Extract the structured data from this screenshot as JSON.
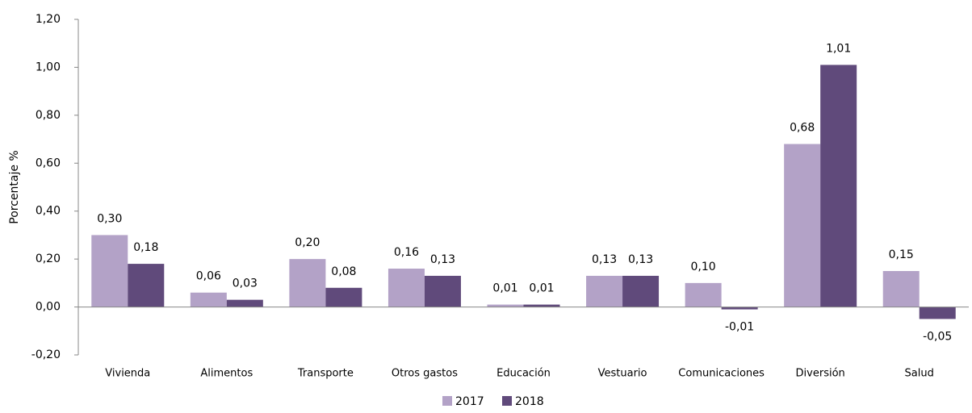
{
  "chart_data": {
    "type": "bar",
    "y_label": "Porcentaje %",
    "categories": [
      "Vivienda",
      "Alimentos",
      "Transporte",
      "Otros gastos",
      "Educación",
      "Vestuario",
      "Comunicaciones",
      "Diversión",
      "Salud"
    ],
    "series": [
      {
        "name": "2017",
        "color": "#b3a2c7",
        "values": [
          0.3,
          0.06,
          0.2,
          0.16,
          0.01,
          0.13,
          0.1,
          0.68,
          0.15
        ],
        "value_labels": [
          "0,30",
          "0,06",
          "0,20",
          "0,16",
          "0,01",
          "0,13",
          "0,10",
          "0,68",
          "0,15"
        ]
      },
      {
        "name": "2018",
        "color": "#604a7b",
        "values": [
          0.18,
          0.03,
          0.08,
          0.13,
          0.01,
          0.13,
          -0.01,
          1.01,
          -0.05
        ],
        "value_labels": [
          "0,18",
          "0,03",
          "0,08",
          "0,13",
          "0,01",
          "0,13",
          "-0,01",
          "1,01",
          "-0,05"
        ]
      }
    ],
    "ylim": [
      -0.2,
      1.2
    ],
    "yticks": [
      {
        "value": -0.2,
        "label": "-0,20"
      },
      {
        "value": 0,
        "label": "0,00"
      },
      {
        "value": 0.2,
        "label": "0,20"
      },
      {
        "value": 0.4,
        "label": "0,40"
      },
      {
        "value": 0.6,
        "label": "0,60"
      },
      {
        "value": 0.8,
        "label": "0,80"
      },
      {
        "value": 1.0,
        "label": "1,00"
      },
      {
        "value": 1.2,
        "label": "1,20"
      }
    ],
    "grid": false,
    "legend": "bottom"
  }
}
